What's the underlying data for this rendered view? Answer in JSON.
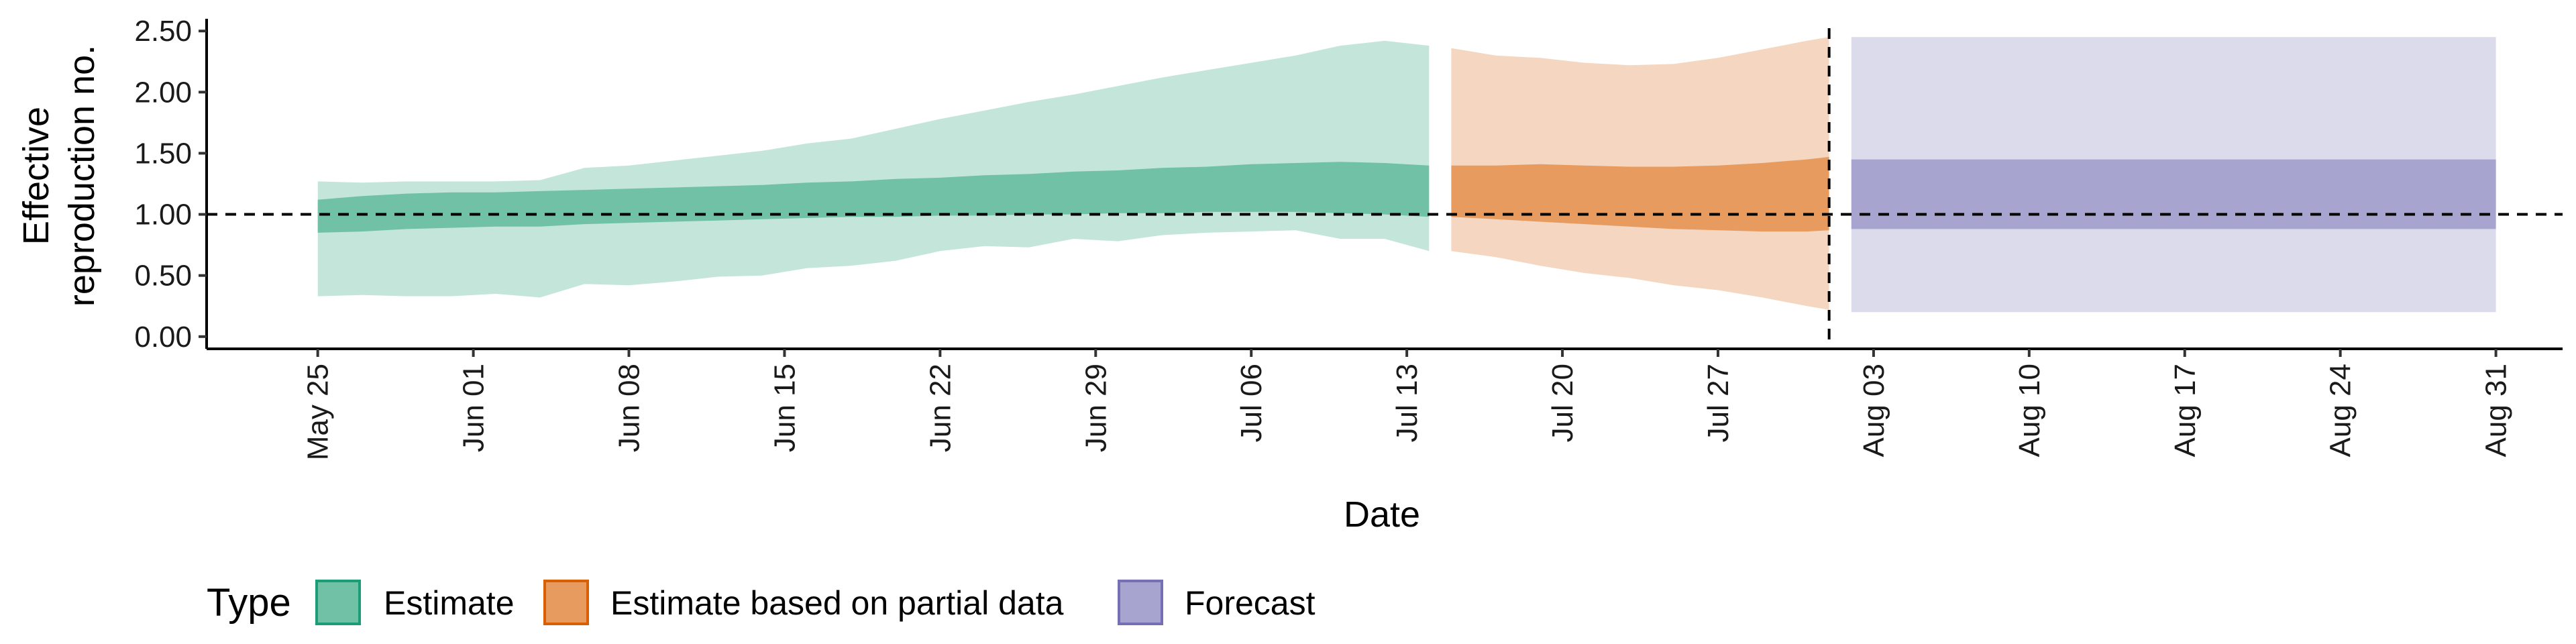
{
  "chart_data": {
    "type": "area",
    "xlabel": "Date",
    "ylabel_lines": [
      "Effective",
      "reproduction no."
    ],
    "x_range": [
      "2020-05-20",
      "2020-09-03"
    ],
    "ylim": [
      -0.1,
      2.6
    ],
    "y_ticks": [
      0,
      0.5,
      1,
      1.5,
      2,
      2.5
    ],
    "y_tick_labels": [
      "0.00",
      "0.50",
      "1.00",
      "1.50",
      "2.00",
      "2.50"
    ],
    "x_ticks": [
      "2020-05-25",
      "2020-06-01",
      "2020-06-08",
      "2020-06-15",
      "2020-06-22",
      "2020-06-29",
      "2020-07-06",
      "2020-07-13",
      "2020-07-20",
      "2020-07-27",
      "2020-08-03",
      "2020-08-10",
      "2020-08-17",
      "2020-08-24",
      "2020-08-31"
    ],
    "x_tick_labels": [
      "May 25",
      "Jun 01",
      "Jun 08",
      "Jun 15",
      "Jun 22",
      "Jun 29",
      "Jul 06",
      "Jul 13",
      "Jul 20",
      "Jul 27",
      "Aug 03",
      "Aug 10",
      "Aug 17",
      "Aug 24",
      "Aug 31"
    ],
    "reference_line_y": 1.0,
    "reference_line_date": "2020-08-01",
    "grid": false,
    "legend": {
      "title": "Type",
      "placement": "bottom-left",
      "entries": [
        "Estimate",
        "Estimate based on partial data",
        "Forecast"
      ]
    },
    "series": [
      {
        "legend_entry": "Estimate",
        "fill_inner": "#70c1a6",
        "fill_outer": "#c4e6da",
        "border": "#1b9e77",
        "x": [
          "2020-05-25",
          "2020-05-27",
          "2020-05-29",
          "2020-05-31",
          "2020-06-02",
          "2020-06-04",
          "2020-06-06",
          "2020-06-08",
          "2020-06-10",
          "2020-06-12",
          "2020-06-14",
          "2020-06-16",
          "2020-06-18",
          "2020-06-20",
          "2020-06-22",
          "2020-06-24",
          "2020-06-26",
          "2020-06-28",
          "2020-06-30",
          "2020-07-02",
          "2020-07-04",
          "2020-07-06",
          "2020-07-08",
          "2020-07-10",
          "2020-07-12",
          "2020-07-14"
        ],
        "outer_lower": [
          0.33,
          0.34,
          0.33,
          0.33,
          0.35,
          0.32,
          0.43,
          0.42,
          0.45,
          0.49,
          0.5,
          0.56,
          0.58,
          0.62,
          0.7,
          0.74,
          0.73,
          0.8,
          0.78,
          0.83,
          0.85,
          0.86,
          0.87,
          0.8,
          0.8,
          0.7
        ],
        "outer_upper": [
          1.27,
          1.26,
          1.27,
          1.27,
          1.27,
          1.28,
          1.38,
          1.4,
          1.44,
          1.48,
          1.52,
          1.58,
          1.62,
          1.7,
          1.78,
          1.85,
          1.92,
          1.98,
          2.05,
          2.12,
          2.18,
          2.24,
          2.3,
          2.38,
          2.42,
          2.38
        ],
        "inner_lower": [
          0.85,
          0.86,
          0.88,
          0.89,
          0.9,
          0.9,
          0.92,
          0.93,
          0.94,
          0.95,
          0.96,
          0.97,
          0.98,
          0.98,
          0.99,
          0.99,
          1.0,
          1.0,
          1.01,
          1.01,
          1.02,
          1.02,
          1.02,
          1.01,
          1.0,
          0.98
        ],
        "inner_upper": [
          1.12,
          1.15,
          1.17,
          1.18,
          1.18,
          1.19,
          1.2,
          1.21,
          1.22,
          1.23,
          1.24,
          1.26,
          1.27,
          1.29,
          1.3,
          1.32,
          1.33,
          1.35,
          1.36,
          1.38,
          1.39,
          1.41,
          1.42,
          1.43,
          1.42,
          1.4
        ]
      },
      {
        "legend_entry": "Estimate based on partial data",
        "fill_inner": "#e89b5f",
        "fill_outer": "#f5d6c1",
        "border": "#d95f02",
        "x": [
          "2020-07-15",
          "2020-07-17",
          "2020-07-19",
          "2020-07-21",
          "2020-07-23",
          "2020-07-25",
          "2020-07-27",
          "2020-07-29",
          "2020-07-31",
          "2020-08-01"
        ],
        "outer_lower": [
          0.7,
          0.65,
          0.58,
          0.52,
          0.48,
          0.42,
          0.38,
          0.32,
          0.25,
          0.22
        ],
        "outer_upper": [
          2.36,
          2.3,
          2.28,
          2.24,
          2.22,
          2.23,
          2.28,
          2.35,
          2.42,
          2.45
        ],
        "inner_lower": [
          0.98,
          0.96,
          0.94,
          0.92,
          0.9,
          0.88,
          0.87,
          0.86,
          0.86,
          0.87
        ],
        "inner_upper": [
          1.4,
          1.4,
          1.41,
          1.4,
          1.39,
          1.39,
          1.4,
          1.42,
          1.45,
          1.47
        ]
      },
      {
        "legend_entry": "Forecast",
        "fill_inner": "#a7a4cf",
        "fill_outer": "#dcdbec",
        "border": "#7570b3",
        "x": [
          "2020-08-02",
          "2020-08-31"
        ],
        "outer_lower": [
          0.2,
          0.2
        ],
        "outer_upper": [
          2.45,
          2.45
        ],
        "inner_lower": [
          0.88,
          0.88
        ],
        "inner_upper": [
          1.45,
          1.45
        ]
      }
    ]
  }
}
